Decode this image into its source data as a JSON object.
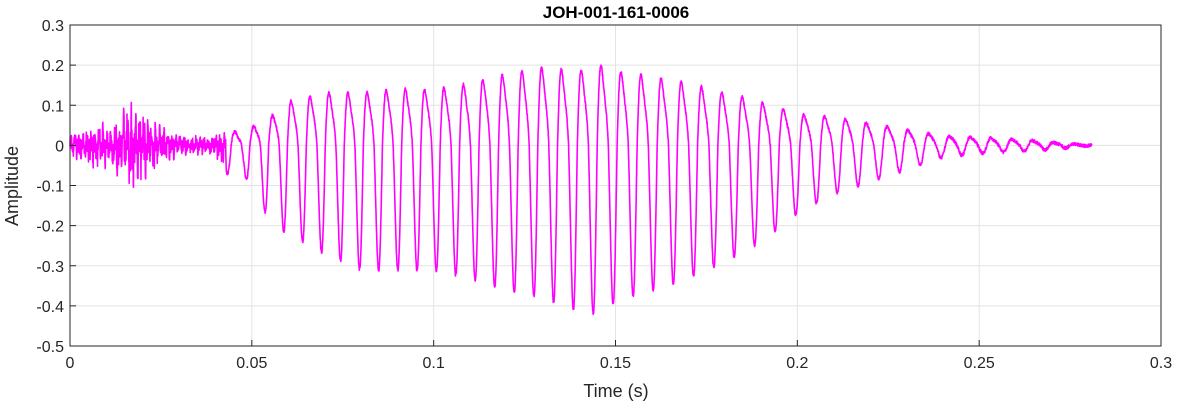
{
  "chart_data": {
    "type": "line",
    "title": "JOH-001-161-0006",
    "xlabel": "Time (s)",
    "ylabel": "Amplitude",
    "xlim": [
      0,
      0.3
    ],
    "ylim": [
      -0.5,
      0.3
    ],
    "x_ticks": [
      0,
      0.05,
      0.1,
      0.15,
      0.2,
      0.25,
      0.3
    ],
    "x_tick_labels": [
      "0",
      "0.05",
      "0.1",
      "0.15",
      "0.2",
      "0.25",
      "0.3"
    ],
    "y_ticks": [
      0.3,
      0.2,
      0.1,
      0,
      -0.1,
      -0.2,
      -0.3,
      -0.4,
      -0.5
    ],
    "y_tick_labels": [
      "0.3",
      "0.2",
      "0.1",
      "0",
      "-0.1",
      "-0.2",
      "-0.3",
      "-0.4",
      "-0.5"
    ],
    "grid": true,
    "series": [
      {
        "color": "#ff00ff",
        "duration": 0.281,
        "envelope": {
          "t": [
            0,
            0.012,
            0.016,
            0.02,
            0.025,
            0.03,
            0.038,
            0.043,
            0.047,
            0.052,
            0.055,
            0.06,
            0.07,
            0.08,
            0.09,
            0.1,
            0.11,
            0.12,
            0.13,
            0.14,
            0.145,
            0.15,
            0.16,
            0.17,
            0.18,
            0.19,
            0.2,
            0.21,
            0.22,
            0.23,
            0.24,
            0.25,
            0.26,
            0.27,
            0.281
          ],
          "pos": [
            0.03,
            0.06,
            0.11,
            0.09,
            0.05,
            0.03,
            0.02,
            0.05,
            0.04,
            0.07,
            0.09,
            0.14,
            0.17,
            0.17,
            0.18,
            0.18,
            0.2,
            0.23,
            0.25,
            0.24,
            0.26,
            0.24,
            0.22,
            0.2,
            0.17,
            0.14,
            0.1,
            0.09,
            0.07,
            0.05,
            0.03,
            0.025,
            0.02,
            0.01,
            0.0
          ],
          "neg": [
            0.03,
            0.07,
            0.12,
            0.09,
            0.05,
            0.03,
            0.02,
            0.07,
            0.06,
            0.14,
            0.19,
            0.22,
            0.27,
            0.31,
            0.31,
            0.31,
            0.33,
            0.36,
            0.38,
            0.41,
            0.42,
            0.39,
            0.36,
            0.33,
            0.29,
            0.24,
            0.17,
            0.12,
            0.09,
            0.06,
            0.03,
            0.02,
            0.015,
            0.01,
            0.0
          ]
        }
      }
    ]
  }
}
